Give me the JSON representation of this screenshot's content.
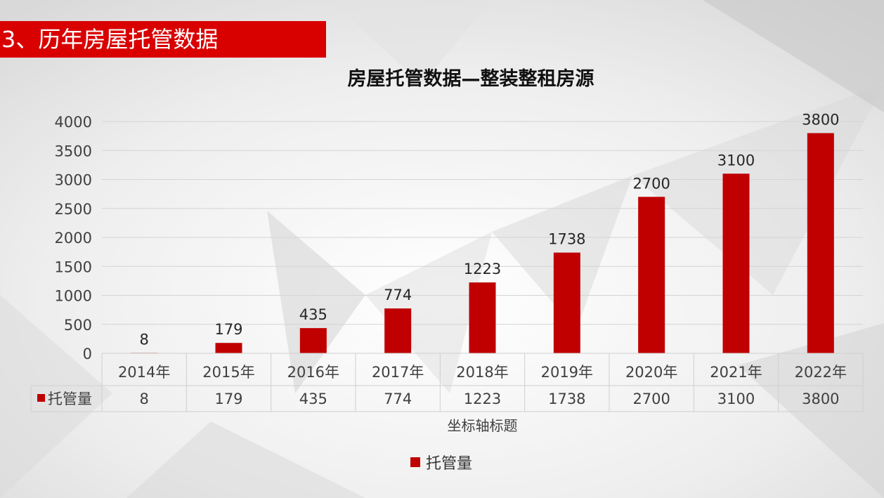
{
  "slide": {
    "heading": "3、历年房屋托管数据"
  },
  "chart_data": {
    "type": "bar",
    "title": "房屋托管数据—整装整租房源",
    "categories": [
      "2014年",
      "2015年",
      "2016年",
      "2017年",
      "2018年",
      "2019年",
      "2020年",
      "2021年",
      "2022年"
    ],
    "series": [
      {
        "name": "托管量",
        "values": [
          8,
          179,
          435,
          774,
          1223,
          1738,
          2700,
          3100,
          3800
        ],
        "color": "#c00000"
      }
    ],
    "xlabel": "坐标轴标题",
    "ylabel": "",
    "ylim": [
      0,
      4000
    ],
    "yticks": [
      0,
      500,
      1000,
      1500,
      2000,
      2500,
      3000,
      3500,
      4000
    ],
    "grid": true,
    "data_labels": true,
    "data_table": true,
    "legend": "bottom"
  }
}
